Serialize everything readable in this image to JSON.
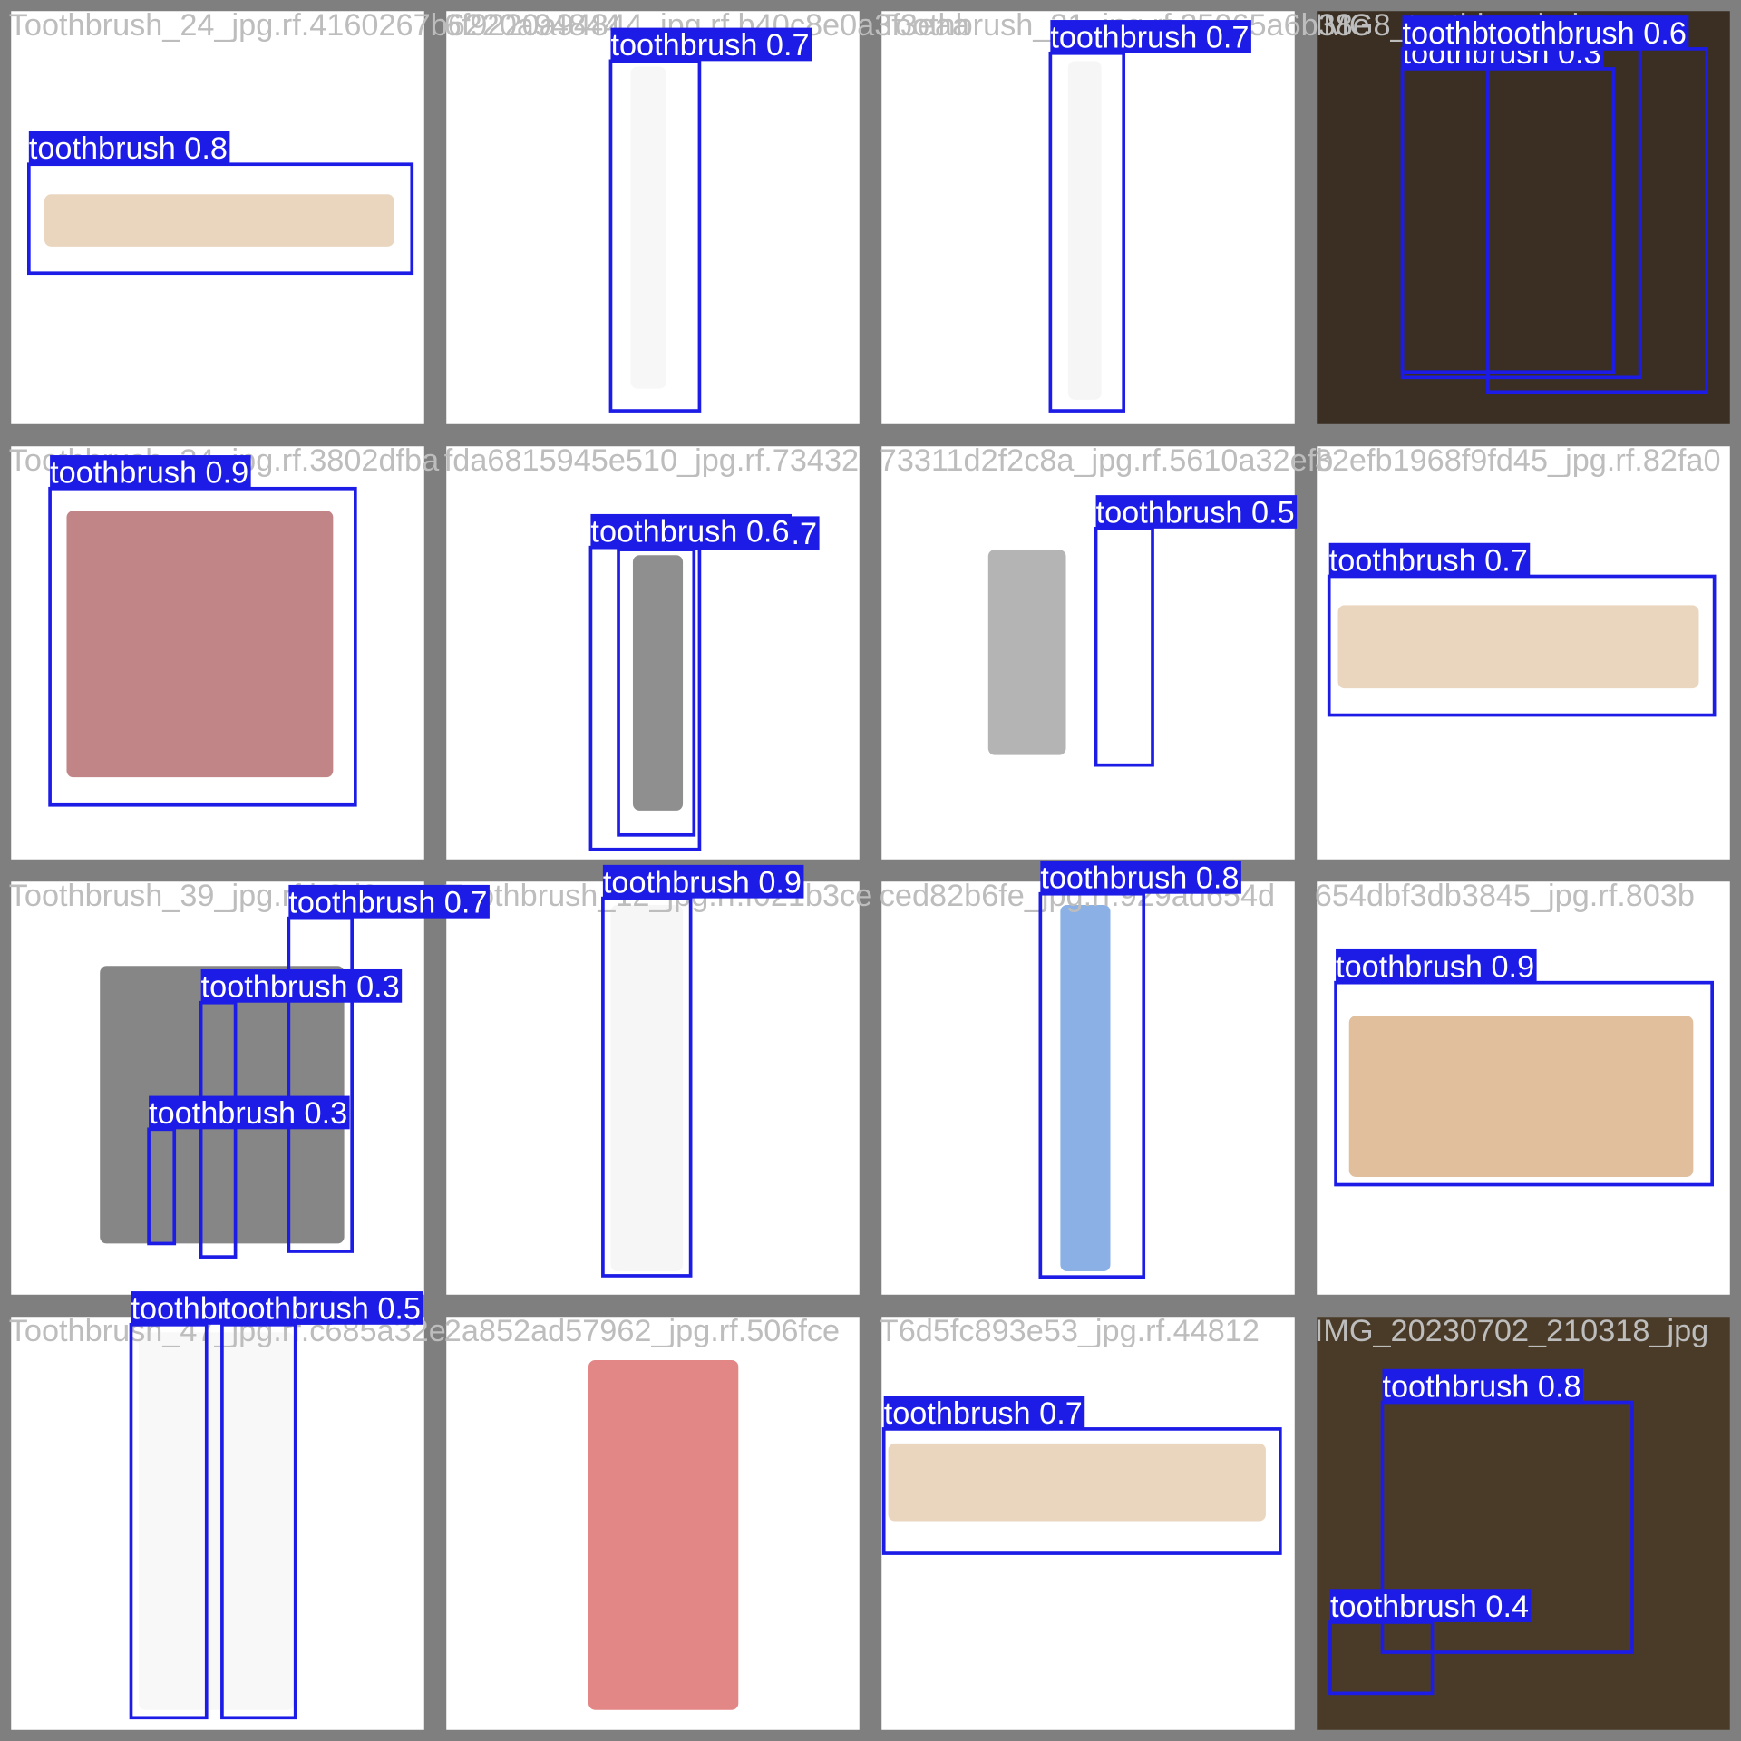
{
  "tiles": [
    {
      "filename": "Toothbrush_24_jpg.rf.4160267b6220a94844",
      "detections": [
        {
          "label": "toothbrush 0.8"
        }
      ]
    },
    {
      "filename": "6f9220a94844_jpg.rf.b40c8e0a3f3eaa",
      "detections": [
        {
          "label": "toothbrush 0.7"
        }
      ]
    },
    {
      "filename": "Toothbrush_31_jpg.rf.25065a6b38e",
      "detections": [
        {
          "label": "toothbrush 0.7"
        }
      ]
    },
    {
      "filename": "IMG8_toothbrush_jpg",
      "detections": [
        {
          "label": "toothbrush 0.3"
        },
        {
          "label": "toothbrush 0.4"
        },
        {
          "label": "toothbrush 0.6"
        }
      ]
    },
    {
      "filename": "Toothbrush_34_jpg.rf.3802dfba",
      "detections": [
        {
          "label": "toothbrush 0.9"
        }
      ]
    },
    {
      "filename": "fda6815945e510_jpg.rf.73432",
      "detections": [
        {
          "label": "toothbrush 0.7"
        },
        {
          "label": "toothbrush 0.6"
        }
      ]
    },
    {
      "filename": "73311d2f2c8a_jpg.rf.5610a32efb",
      "detections": [
        {
          "label": "toothbrush 0.5"
        }
      ]
    },
    {
      "filename": "32efb1968f9fd45_jpg.rf.82fa0",
      "detections": [
        {
          "label": "toothbrush 0.7"
        }
      ]
    },
    {
      "filename": "Toothbrush_39_jpg.rf.b2d0e",
      "detections": [
        {
          "label": "toothbrush 0.7"
        },
        {
          "label": "toothbrush 0.3"
        },
        {
          "label": "toothbrush 0.3"
        }
      ]
    },
    {
      "filename": "Toothbrush_12_jpg.rf.f021b3ce",
      "detections": [
        {
          "label": "toothbrush 0.9"
        }
      ]
    },
    {
      "filename": "ced82b6fe_jpg.rf.929ad654d",
      "detections": [
        {
          "label": "toothbrush 0.8"
        }
      ]
    },
    {
      "filename": "654dbf3db3845_jpg.rf.803b",
      "detections": [
        {
          "label": "toothbrush 0.9"
        }
      ]
    },
    {
      "filename": "Toothbrush_47_jpg.rf.c685a32e",
      "detections": [
        {
          "label": "toothbrush 0.4"
        },
        {
          "label": "toothbrush 0.5"
        }
      ]
    },
    {
      "filename": "2a852ad57962_jpg.rf.506fce",
      "detections": []
    },
    {
      "filename": "T6d5fc893e53_jpg.rf.44812",
      "detections": [
        {
          "label": "toothbrush 0.7"
        }
      ]
    },
    {
      "filename": "IMG_20230702_210318_jpg",
      "detections": [
        {
          "label": "toothbrush 0.8"
        },
        {
          "label": "toothbrush 0.4"
        }
      ]
    }
  ]
}
